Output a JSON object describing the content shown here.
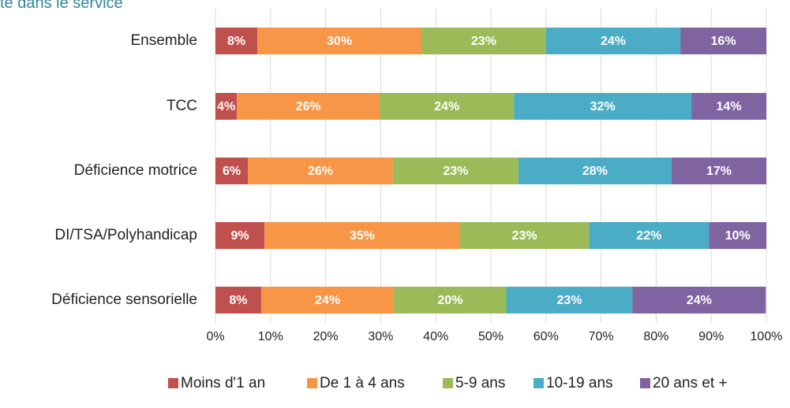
{
  "chart_data": {
    "type": "stacked_bar_horizontal",
    "title": "té dans le service",
    "categories": [
      "Ensemble",
      "TCC",
      "Déficience motrice",
      "DI/TSA/Polyhandicap",
      "Déficience sensorielle"
    ],
    "series": [
      {
        "name": "Moins d'1 an",
        "color": "#c0504d",
        "values": [
          7.6,
          3.9,
          5.9,
          8.9,
          8.3
        ],
        "value_labels": [
          "8%",
          "4%",
          "6%",
          "9%",
          "8%"
        ]
      },
      {
        "name": "De 1 à 4 ans",
        "color": "#f79646",
        "values": [
          29.8,
          25.9,
          26.3,
          35.5,
          24.1
        ],
        "value_labels": [
          "30%",
          "26%",
          "26%",
          "35%",
          "24%"
        ]
      },
      {
        "name": "5-9 ans",
        "color": "#9bbb59",
        "values": [
          22.6,
          24.4,
          22.8,
          23.4,
          20.4
        ],
        "value_labels": [
          "23%",
          "24%",
          "23%",
          "23%",
          "20%"
        ]
      },
      {
        "name": "10-19 ans",
        "color": "#4bacc6",
        "values": [
          24.4,
          32.2,
          27.8,
          21.8,
          22.9
        ],
        "value_labels": [
          "24%",
          "32%",
          "28%",
          "22%",
          "23%"
        ]
      },
      {
        "name": "20 ans et +",
        "color": "#8064a2",
        "values": [
          15.6,
          13.6,
          17.2,
          10.4,
          24.2
        ],
        "value_labels": [
          "16%",
          "14%",
          "17%",
          "10%",
          "24%"
        ]
      }
    ],
    "xlim": [
      0,
      100
    ],
    "xticks": [
      {
        "value": 0,
        "label": "0%"
      },
      {
        "value": 10,
        "label": "10%"
      },
      {
        "value": 20,
        "label": "20%"
      },
      {
        "value": 30,
        "label": "30%"
      },
      {
        "value": 40,
        "label": "40%"
      },
      {
        "value": 50,
        "label": "50%"
      },
      {
        "value": 60,
        "label": "60%"
      },
      {
        "value": 70,
        "label": "70%"
      },
      {
        "value": 80,
        "label": "80%"
      },
      {
        "value": 90,
        "label": "90%"
      },
      {
        "value": 100,
        "label": "100%"
      }
    ],
    "grid": true,
    "legend": "bottom"
  }
}
